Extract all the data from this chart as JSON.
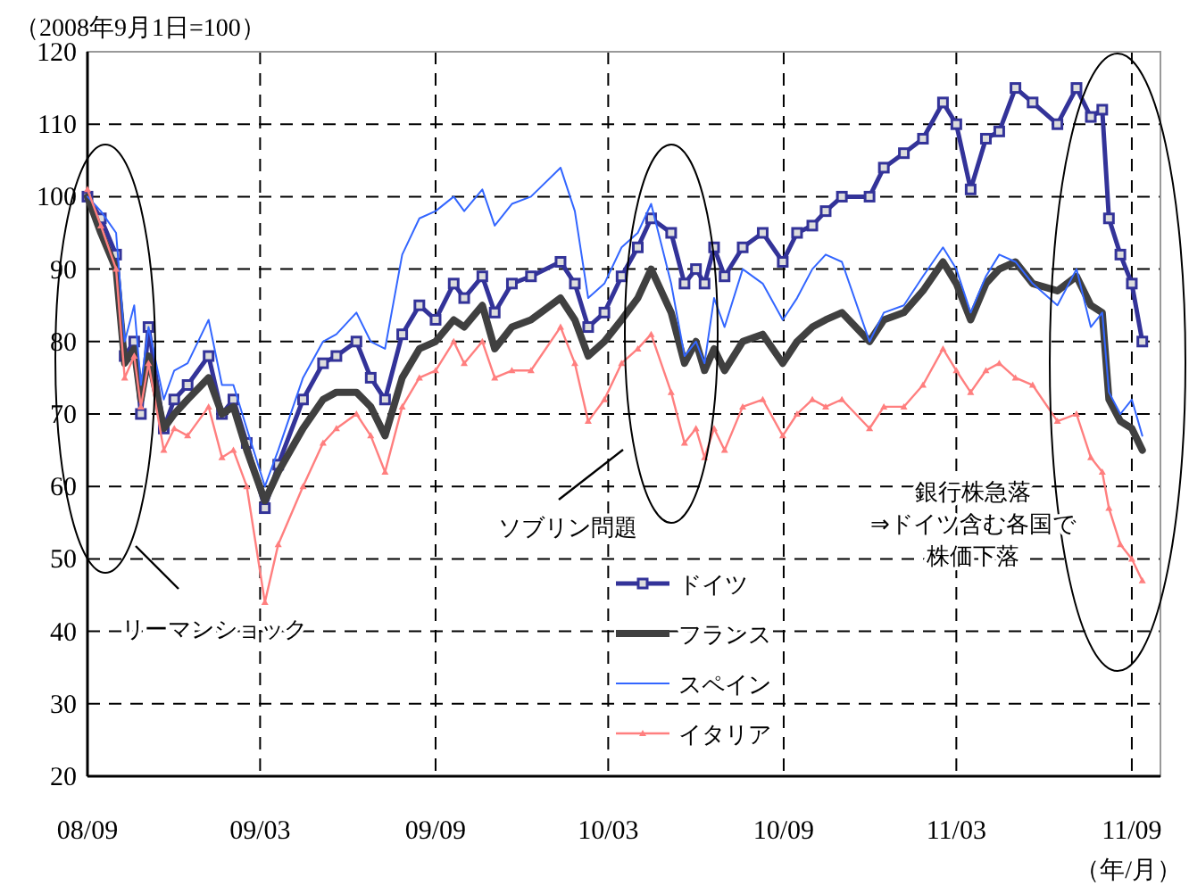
{
  "chart_data": {
    "type": "line",
    "ylabel": "（2008年9月1日=100）",
    "xlabel": "（年/月）",
    "x": [
      "2008-09-01",
      "2008-09-15",
      "2008-10-01",
      "2008-10-10",
      "2008-10-20",
      "2008-10-27",
      "2008-11-04",
      "2008-11-20",
      "2008-12-01",
      "2008-12-15",
      "2009-01-06",
      "2009-01-20",
      "2009-02-01",
      "2009-02-15",
      "2009-03-06",
      "2009-03-20",
      "2009-04-15",
      "2009-05-06",
      "2009-05-20",
      "2009-06-10",
      "2009-06-25",
      "2009-07-10",
      "2009-07-28",
      "2009-08-15",
      "2009-09-01",
      "2009-09-20",
      "2009-10-01",
      "2009-10-20",
      "2009-11-02",
      "2009-11-20",
      "2009-12-10",
      "2010-01-10",
      "2010-01-25",
      "2010-02-08",
      "2010-02-25",
      "2010-03-15",
      "2010-04-01",
      "2010-04-15",
      "2010-05-06",
      "2010-05-20",
      "2010-06-01",
      "2010-06-10",
      "2010-06-20",
      "2010-07-01",
      "2010-07-20",
      "2010-08-10",
      "2010-08-31",
      "2010-09-15",
      "2010-10-01",
      "2010-10-15",
      "2010-11-01",
      "2010-11-30",
      "2010-12-15",
      "2011-01-05",
      "2011-01-25",
      "2011-02-15",
      "2011-03-01",
      "2011-03-16",
      "2011-04-01",
      "2011-04-15",
      "2011-05-02",
      "2011-05-20",
      "2011-06-15",
      "2011-07-05",
      "2011-07-20",
      "2011-08-01",
      "2011-08-08",
      "2011-08-20",
      "2011-09-01",
      "2011-09-12"
    ],
    "series": [
      {
        "name": "ドイツ",
        "color": "#333399",
        "marker": "square",
        "values": [
          100,
          97,
          92,
          78,
          80,
          70,
          82,
          68,
          72,
          74,
          78,
          70,
          72,
          66,
          57,
          63,
          72,
          77,
          78,
          80,
          75,
          72,
          81,
          85,
          83,
          88,
          86,
          89,
          84,
          88,
          89,
          91,
          88,
          82,
          84,
          89,
          93,
          97,
          95,
          88,
          90,
          88,
          93,
          89,
          93,
          95,
          91,
          95,
          96,
          98,
          100,
          100,
          104,
          106,
          108,
          113,
          110,
          101,
          108,
          109,
          115,
          113,
          110,
          115,
          111,
          112,
          97,
          92,
          88,
          80
        ]
      },
      {
        "name": "フランス",
        "color": "#404040",
        "marker": "none",
        "values": [
          100,
          95,
          90,
          77,
          79,
          72,
          78,
          68,
          70,
          72,
          75,
          70,
          71,
          65,
          58,
          62,
          68,
          72,
          73,
          73,
          71,
          67,
          75,
          79,
          80,
          83,
          82,
          85,
          79,
          82,
          83,
          86,
          83,
          78,
          80,
          83,
          86,
          90,
          84,
          77,
          80,
          76,
          79,
          76,
          80,
          81,
          77,
          80,
          82,
          83,
          84,
          80,
          83,
          84,
          87,
          91,
          88,
          83,
          88,
          90,
          91,
          88,
          87,
          89,
          85,
          84,
          72,
          69,
          68,
          65
        ]
      },
      {
        "name": "スペイン",
        "color": "#3366ff",
        "marker": "none",
        "values": [
          100,
          98,
          95,
          80,
          85,
          74,
          82,
          72,
          76,
          77,
          83,
          74,
          74,
          68,
          60,
          65,
          75,
          80,
          81,
          84,
          80,
          79,
          92,
          97,
          98,
          100,
          98,
          101,
          96,
          99,
          100,
          104,
          98,
          86,
          88,
          93,
          95,
          99,
          88,
          78,
          80,
          77,
          86,
          82,
          90,
          88,
          83,
          86,
          90,
          92,
          91,
          80,
          84,
          85,
          89,
          93,
          90,
          84,
          89,
          92,
          91,
          88,
          85,
          90,
          82,
          84,
          73,
          70,
          72,
          67
        ]
      },
      {
        "name": "イタリア",
        "color": "#ff7f7f",
        "marker": "triangle",
        "values": [
          101,
          96,
          90,
          75,
          78,
          71,
          77,
          65,
          68,
          67,
          71,
          64,
          65,
          60,
          44,
          52,
          60,
          66,
          68,
          70,
          67,
          62,
          71,
          75,
          76,
          80,
          77,
          80,
          75,
          76,
          76,
          82,
          77,
          69,
          72,
          77,
          79,
          81,
          73,
          66,
          68,
          64,
          68,
          65,
          71,
          72,
          67,
          70,
          72,
          71,
          72,
          68,
          71,
          71,
          74,
          79,
          76,
          73,
          76,
          77,
          75,
          74,
          69,
          70,
          64,
          62,
          57,
          52,
          50,
          47
        ]
      }
    ],
    "xlim": [
      "2008-09-01",
      "2011-10-01"
    ],
    "xticks": [
      {
        "value": "2008-09-01",
        "label": "08/09"
      },
      {
        "value": "2009-03-01",
        "label": "09/03"
      },
      {
        "value": "2009-09-01",
        "label": "09/09"
      },
      {
        "value": "2010-03-01",
        "label": "10/03"
      },
      {
        "value": "2010-09-01",
        "label": "10/09"
      },
      {
        "value": "2011-03-01",
        "label": "11/03"
      },
      {
        "value": "2011-09-01",
        "label": "11/09"
      }
    ],
    "ylim": [
      20,
      120
    ],
    "yticks": [
      20,
      30,
      40,
      50,
      60,
      70,
      80,
      90,
      100,
      110,
      120
    ],
    "grid": true,
    "legend": "bottom",
    "line_style": "solid",
    "annotations": [
      "リーマンショック",
      "ソブリン問題",
      "銀行株急落",
      "⇒ドイツ含む各国で",
      "株価下落"
    ]
  }
}
